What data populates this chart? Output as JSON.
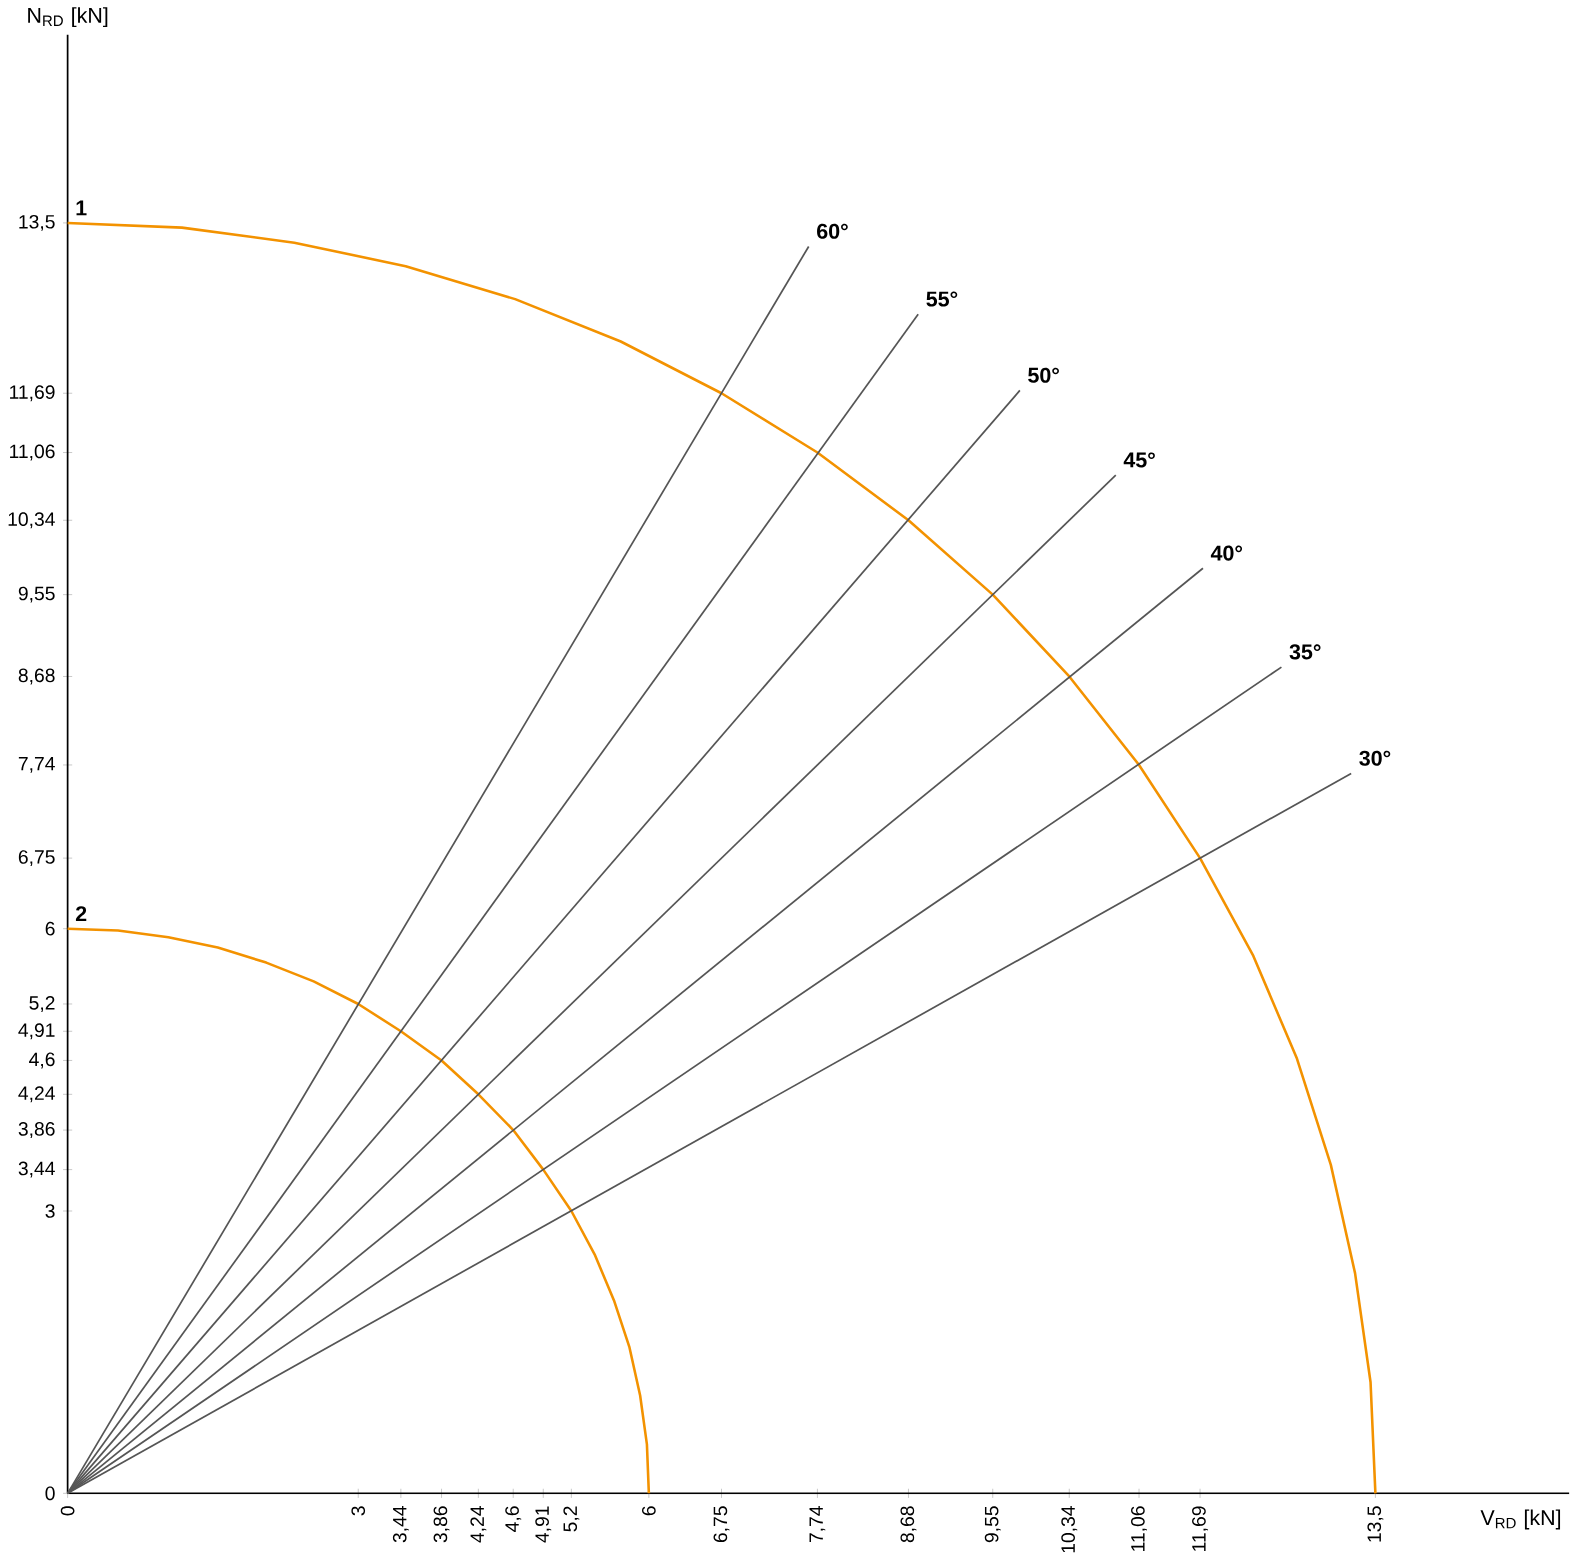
{
  "chart_data": {
    "type": "line",
    "xlabel": "V$_{RD}$ [kN]",
    "ylabel": "N$_{RD}$ [kN]",
    "marker": "none",
    "xlim": [
      0,
      15.5
    ],
    "ylim": [
      0,
      15.5
    ],
    "xticks": [
      0,
      3,
      {
        "value": 3.44,
        "label": "3,44"
      },
      {
        "value": 3.86,
        "label": "3,86"
      },
      {
        "value": 4.24,
        "label": "4,24"
      },
      {
        "value": 4.6,
        "label": "4,6"
      },
      {
        "value": 4.91,
        "label": "4,91"
      },
      {
        "value": 5.2,
        "label": "5,2"
      },
      6,
      {
        "value": 6.75,
        "label": "6,75"
      },
      {
        "value": 7.74,
        "label": "7,74"
      },
      {
        "value": 8.68,
        "label": "8,68"
      },
      {
        "value": 9.55,
        "label": "9,55"
      },
      {
        "value": 10.34,
        "label": "10,34"
      },
      {
        "value": 11.06,
        "label": "11,06"
      },
      {
        "value": 11.69,
        "label": "11,69"
      },
      {
        "value": 13.5,
        "label": "13,5"
      }
    ],
    "yticks": [
      0,
      3,
      {
        "value": 3.44,
        "label": "3,44"
      },
      {
        "value": 3.86,
        "label": "3,86"
      },
      {
        "value": 4.24,
        "label": "4,24"
      },
      {
        "value": 4.6,
        "label": "4,6"
      },
      {
        "value": 4.91,
        "label": "4,91"
      },
      {
        "value": 5.2,
        "label": "5,2"
      },
      6,
      {
        "value": 6.75,
        "label": "6,75"
      },
      {
        "value": 7.74,
        "label": "7,74"
      },
      {
        "value": 8.68,
        "label": "8,68"
      },
      {
        "value": 9.55,
        "label": "9,55"
      },
      {
        "value": 10.34,
        "label": "10,34"
      },
      {
        "value": 11.06,
        "label": "11,06"
      },
      {
        "value": 11.69,
        "label": "11,69"
      },
      {
        "value": 13.5,
        "label": "13,5"
      }
    ],
    "series": [
      {
        "color": "#f39200",
        "x": [
          0,
          1.18,
          2.34,
          3.49,
          4.62,
          5.71,
          6.75,
          7.74,
          8.68,
          9.55,
          10.34,
          11.06,
          11.69,
          12.24,
          12.69,
          13.04,
          13.29,
          13.45,
          13.5
        ],
        "values": [
          13.5,
          13.45,
          13.29,
          13.04,
          12.69,
          12.24,
          11.69,
          11.06,
          10.34,
          9.55,
          8.68,
          7.74,
          6.75,
          5.71,
          4.62,
          3.49,
          2.34,
          1.18,
          0
        ]
      },
      {
        "color": "#f39200",
        "x": [
          0,
          0.52,
          1.04,
          1.55,
          2.05,
          2.54,
          3,
          3.44,
          3.86,
          4.24,
          4.6,
          4.91,
          5.2,
          5.44,
          5.64,
          5.8,
          5.91,
          5.98,
          6
        ],
        "values": [
          6,
          5.98,
          5.91,
          5.8,
          5.64,
          5.44,
          5.2,
          4.91,
          4.6,
          4.24,
          3.86,
          3.44,
          3,
          2.54,
          2.05,
          1.55,
          1.04,
          0.52,
          0
        ]
      },
      {
        "color": "#555555",
        "x": [
          0,
          13.25
        ],
        "values": [
          0,
          7.65
        ]
      },
      {
        "color": "#555555",
        "x": [
          0,
          12.53
        ],
        "values": [
          0,
          8.78
        ]
      },
      {
        "color": "#555555",
        "x": [
          0,
          11.72
        ],
        "values": [
          0,
          9.83
        ]
      },
      {
        "color": "#555555",
        "x": [
          0,
          10.82
        ],
        "values": [
          0,
          10.82
        ]
      },
      {
        "color": "#555555",
        "x": [
          0,
          9.83
        ],
        "values": [
          0,
          11.72
        ]
      },
      {
        "color": "#555555",
        "x": [
          0,
          8.78
        ],
        "values": [
          0,
          12.53
        ]
      },
      {
        "color": "#555555",
        "x": [
          0,
          7.65
        ],
        "values": [
          0,
          13.25
        ]
      }
    ],
    "annotations": [
      "1",
      "2",
      "30°",
      "35°",
      "40°",
      "45°",
      "50°",
      "55°",
      "60°"
    ]
  }
}
